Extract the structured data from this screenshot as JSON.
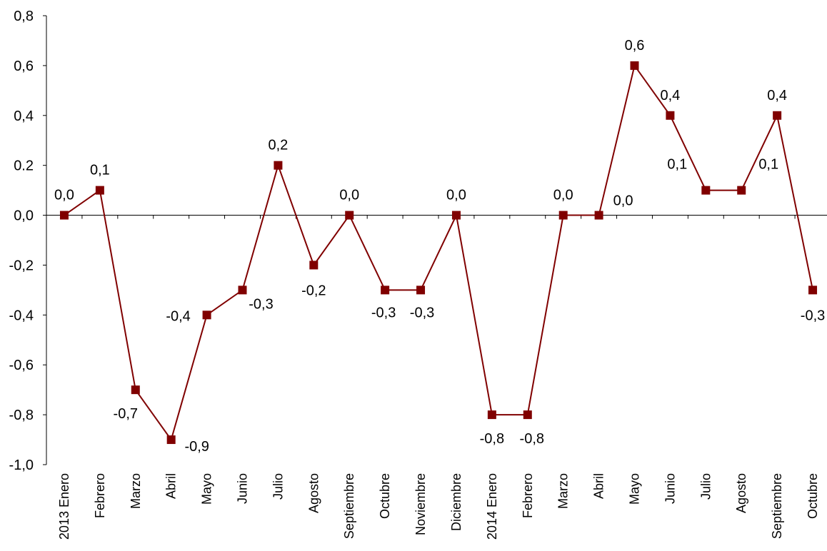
{
  "chart_data": {
    "type": "line",
    "title": "",
    "xlabel": "",
    "ylabel": "",
    "ylim": [
      -1.0,
      0.8
    ],
    "yticks": [
      -1.0,
      -0.8,
      -0.6,
      -0.4,
      -0.2,
      0.0,
      0.2,
      0.4,
      0.6,
      0.8
    ],
    "ytick_labels": [
      "-1,0",
      "-0,8",
      "-0,6",
      "-0,4",
      "-0,2",
      "0,0",
      "0.2",
      "0,4",
      "0,6",
      "0,8"
    ],
    "categories": [
      "2013 Enero",
      "Febrero",
      "Marzo",
      "Abril",
      "Mayo",
      "Junio",
      "Julio",
      "Agosto",
      "Septiembre",
      "Octubre",
      "Noviembre",
      "Diciembre",
      "2014 Enero",
      "Febrero",
      "Marzo",
      "Abril",
      "Mayo",
      "Junio",
      "Julio",
      "Agosto",
      "Septiembre",
      "Octubre"
    ],
    "series": [
      {
        "values": [
          0.0,
          0.1,
          -0.7,
          -0.9,
          -0.4,
          -0.3,
          0.2,
          -0.2,
          0.0,
          -0.3,
          -0.3,
          0.0,
          -0.8,
          -0.8,
          0.0,
          0.0,
          0.6,
          0.4,
          0.1,
          0.1,
          0.4,
          -0.3
        ],
        "labels": [
          "0,0",
          "0,1",
          "-0,7",
          "-0,9",
          "-0,4",
          "-0,3",
          "0,2",
          "-0,2",
          "0,0",
          "-0,3",
          "-0,3",
          "0,0",
          "-0,8",
          "-0,8",
          "0,0",
          "0,0",
          "0,6",
          "0,4",
          "0,1",
          "0,1",
          "0,4",
          "-0,3"
        ],
        "color": "#800000"
      }
    ],
    "grid": false,
    "legend": "none"
  }
}
